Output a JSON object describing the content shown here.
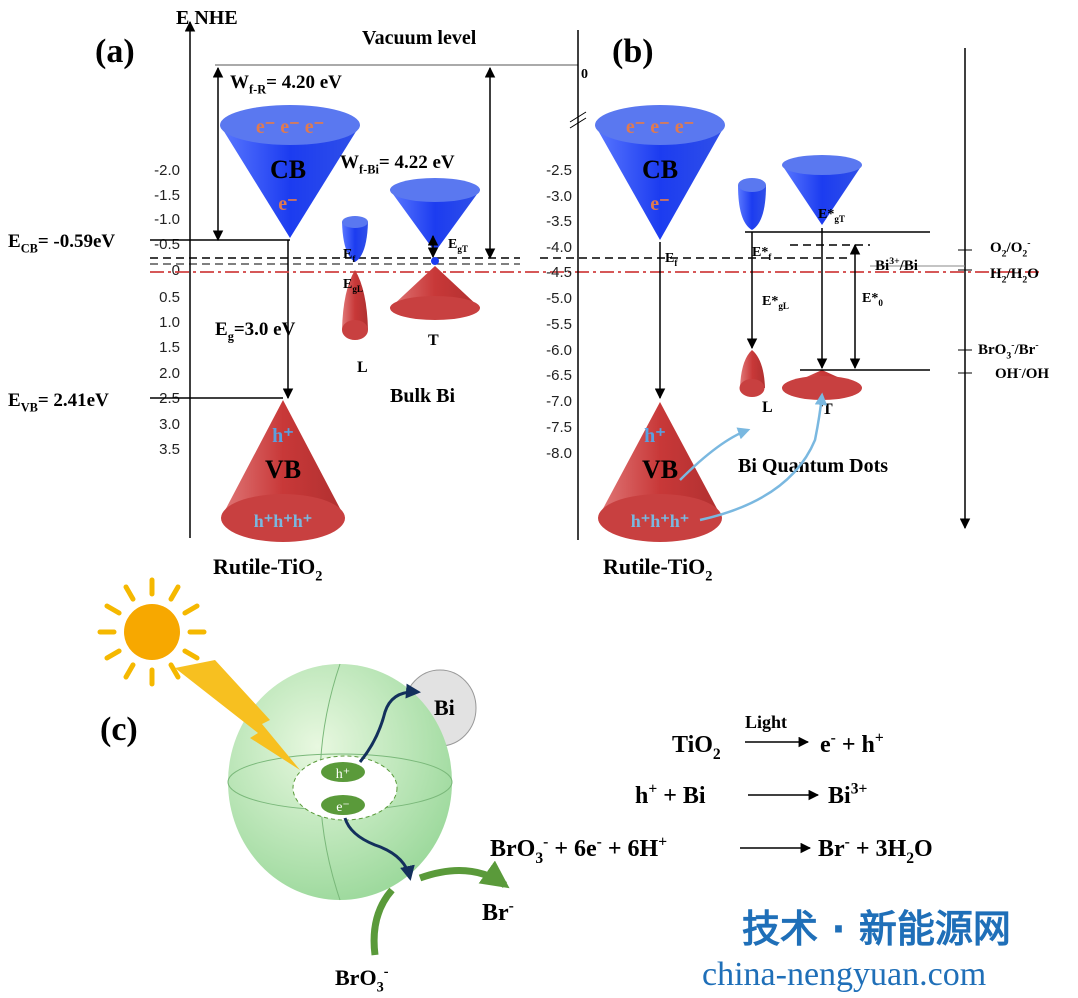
{
  "panel_a": {
    "label": "(a)",
    "axis_title": "E NHE",
    "vacuum_level": "Vacuum level",
    "vacuum_zero": "0",
    "ticks": [
      "-2.0",
      "-1.5",
      "-1.0",
      "-0.5",
      "0",
      "0.5",
      "1.0",
      "1.5",
      "2.0",
      "2.5",
      "3.0",
      "3.5"
    ],
    "wf_r": [
      "W",
      "f-R",
      "= 4.20 eV"
    ],
    "wf_bi": [
      "W",
      "f-Bi",
      "= 4.22 eV"
    ],
    "ecb": [
      "E",
      "CB",
      "= -0.59eV"
    ],
    "evb": [
      "E",
      "VB",
      "= 2.41eV"
    ],
    "eg": [
      "E",
      "g",
      "=3.0 eV"
    ],
    "cb": "CB",
    "vb": "VB",
    "electrons": "e⁻ e⁻ e⁻",
    "electron": "e⁻",
    "hole": "h⁺",
    "holes": "h⁺h⁺h⁺",
    "ef": [
      "E",
      "f"
    ],
    "egl": [
      "E",
      "gL"
    ],
    "egt": [
      "E",
      "gT"
    ],
    "l": "L",
    "t": "T",
    "bulk_bi": "Bulk Bi",
    "rutile": [
      "Rutile-TiO",
      "2"
    ]
  },
  "panel_b": {
    "label": "(b)",
    "ticks": [
      "-2.5",
      "-3.0",
      "-3.5",
      "-4.0",
      "-4.5",
      "-5.0",
      "-5.5",
      "-6.0",
      "-6.5",
      "-7.0",
      "-7.5",
      "-8.0"
    ],
    "cb": "CB",
    "vb": "VB",
    "electrons": "e⁻ e⁻ e⁻",
    "electron": "e⁻",
    "hole": "h⁺",
    "holes": "h⁺h⁺h⁺",
    "ef": [
      "E",
      "f"
    ],
    "ef_star": [
      "E*",
      "f"
    ],
    "egl_star": [
      "E*",
      "gL"
    ],
    "egt_star": [
      "E*",
      "gT"
    ],
    "e0_star": [
      "E*",
      "0"
    ],
    "l": "L",
    "t": "T",
    "qd": "Bi Quantum Dots",
    "rutile": [
      "Rutile-TiO",
      "2"
    ],
    "o2": [
      "O",
      "2",
      "/O",
      "2",
      "-"
    ],
    "bi3": [
      "Bi",
      "3+",
      "/Bi"
    ],
    "h2": [
      "H",
      "2",
      "/H",
      "2",
      "O"
    ],
    "bro3": [
      "BrO",
      "3",
      "-",
      "/Br",
      "-"
    ],
    "oh": [
      "OH",
      "-",
      "/OH"
    ]
  },
  "panel_c": {
    "label": "(c)",
    "bi": "Bi",
    "h": "h⁺",
    "e": "e⁻",
    "br": [
      "Br",
      "-"
    ],
    "bro3": [
      "BrO",
      "3",
      "-"
    ],
    "eq1_lhs": [
      "TiO",
      "2"
    ],
    "eq1_light": "Light",
    "eq1_rhs": [
      "e",
      "-",
      " + h",
      "+"
    ],
    "eq2_lhs": [
      "h",
      "+",
      " + Bi"
    ],
    "eq2_rhs": [
      "Bi",
      "3+"
    ],
    "eq3_lhs": [
      "BrO",
      "3",
      "-",
      " + 6e",
      "-",
      " + 6H",
      "+"
    ],
    "eq3_rhs": [
      "Br",
      "-",
      " + 3H",
      "2",
      "O"
    ]
  },
  "watermark": {
    "cn": "技术 · 新能源网",
    "url": "china-nengyuan.com"
  }
}
